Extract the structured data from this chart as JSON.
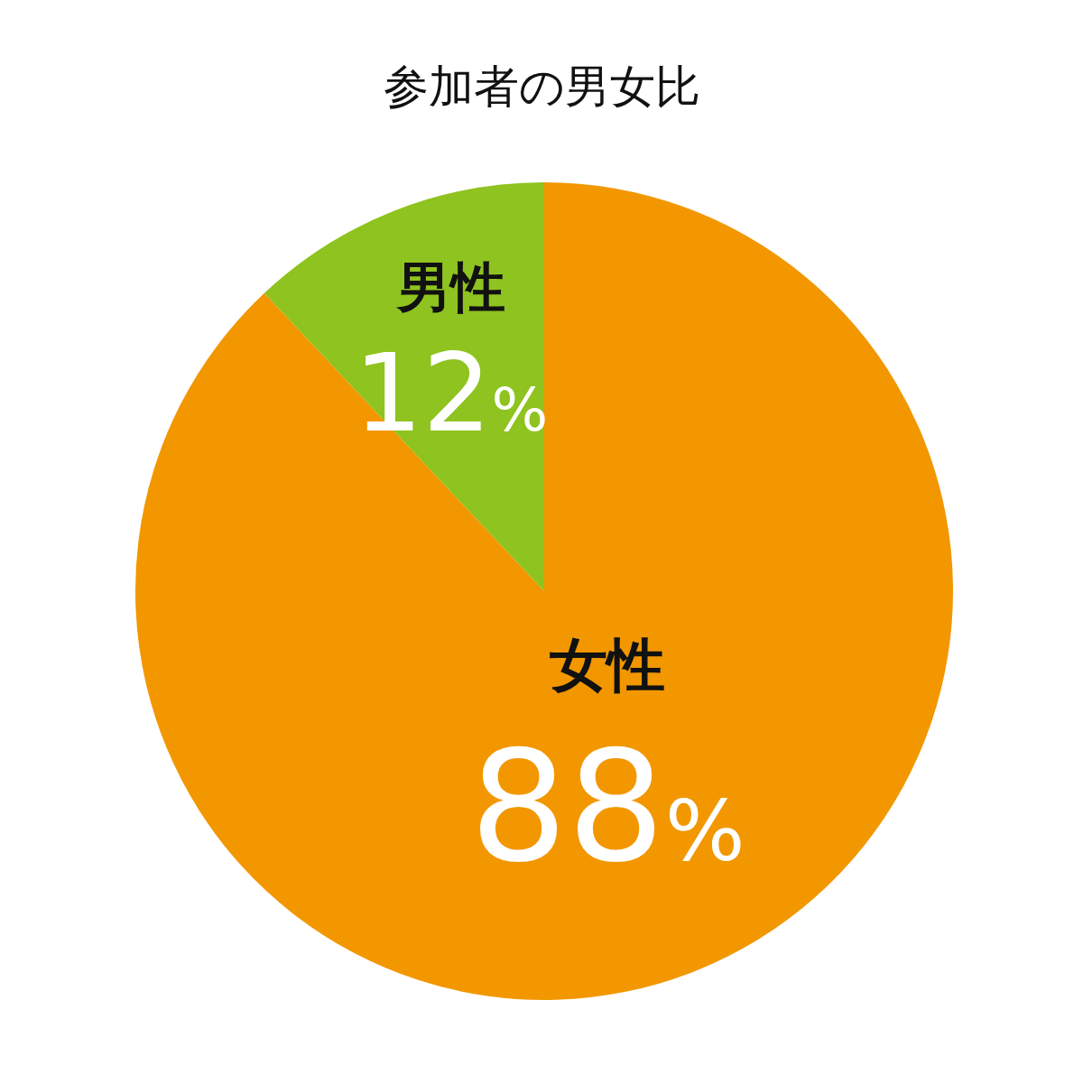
{
  "chart_data": {
    "type": "pie",
    "title": "参加者の男女比",
    "categories": [
      "女性",
      "男性"
    ],
    "values": [
      88,
      12
    ],
    "colors": [
      "#f29700",
      "#8fc31f"
    ],
    "value_labels": [
      "88%",
      "12%"
    ],
    "legend": false
  }
}
